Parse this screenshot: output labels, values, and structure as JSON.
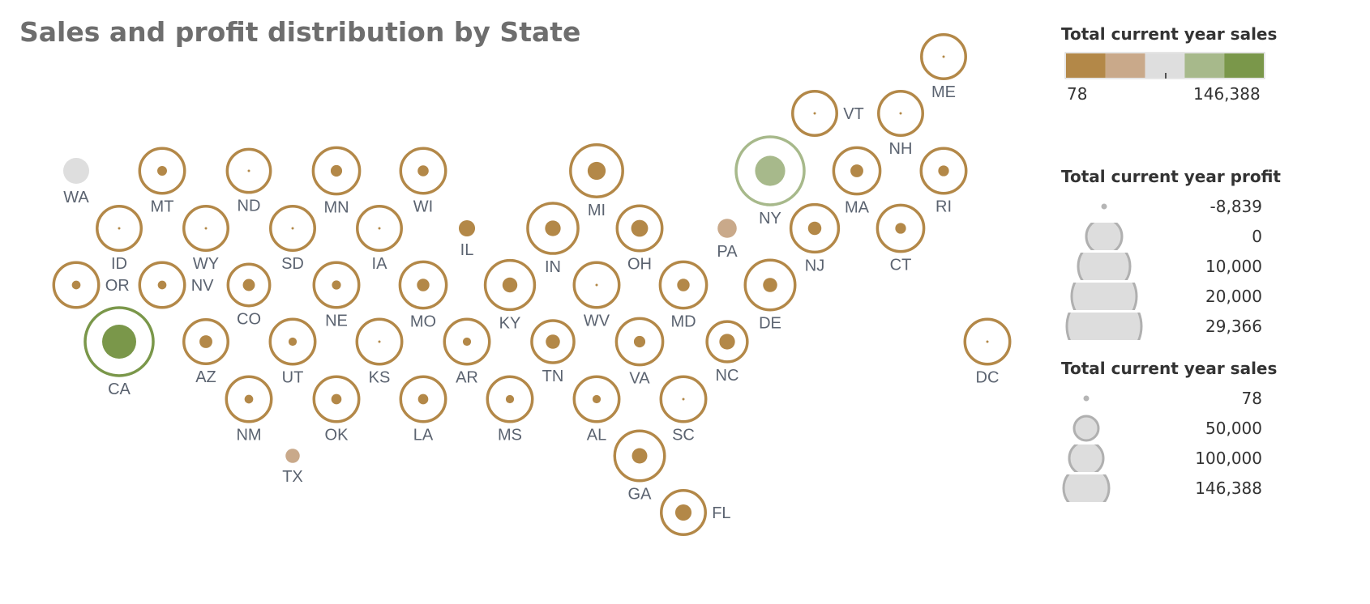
{
  "chart_data": {
    "type": "tile-map-bubble",
    "title": "Sales and profit distribution by State",
    "states": [
      {
        "abbr": "WA",
        "sales": 78,
        "profit": 0,
        "color": "#dedede"
      },
      {
        "abbr": "MT",
        "sales": 12000,
        "profit": 800,
        "color": "#b38848"
      },
      {
        "abbr": "ND",
        "sales": 8000,
        "profit": 100,
        "color": "#b38848"
      },
      {
        "abbr": "MN",
        "sales": 16000,
        "profit": 1500,
        "color": "#b38848"
      },
      {
        "abbr": "WI",
        "sales": 12000,
        "profit": 1300,
        "color": "#b38848"
      },
      {
        "abbr": "MI",
        "sales": 38000,
        "profit": 6000,
        "color": "#b38848"
      },
      {
        "abbr": "NY",
        "sales": 146388,
        "profit": 22000,
        "color": "#a7b98b"
      },
      {
        "abbr": "MA",
        "sales": 16000,
        "profit": 2200,
        "color": "#b38848"
      },
      {
        "abbr": "RI",
        "sales": 12000,
        "profit": 1200,
        "color": "#b38848"
      },
      {
        "abbr": "VT",
        "sales": 10000,
        "profit": 100,
        "color": "#b38848"
      },
      {
        "abbr": "NH",
        "sales": 10000,
        "profit": 100,
        "color": "#b38848"
      },
      {
        "abbr": "ME",
        "sales": 10000,
        "profit": 100,
        "color": "#b38848"
      },
      {
        "abbr": "ID",
        "sales": 10000,
        "profit": 100,
        "color": "#b38848"
      },
      {
        "abbr": "WY",
        "sales": 10000,
        "profit": 100,
        "color": "#b38848"
      },
      {
        "abbr": "SD",
        "sales": 10000,
        "profit": 100,
        "color": "#b38848"
      },
      {
        "abbr": "IA",
        "sales": 10000,
        "profit": 100,
        "color": "#b38848"
      },
      {
        "abbr": "IL",
        "sales": 78,
        "profit": 4500,
        "color": "#b38848"
      },
      {
        "abbr": "IN",
        "sales": 30000,
        "profit": 4000,
        "color": "#b38848"
      },
      {
        "abbr": "OH",
        "sales": 12000,
        "profit": 5000,
        "color": "#b38848"
      },
      {
        "abbr": "PA",
        "sales": 78,
        "profit": 7000,
        "color": "#c9a98a"
      },
      {
        "abbr": "NJ",
        "sales": 20000,
        "profit": 2500,
        "color": "#b38848"
      },
      {
        "abbr": "CT",
        "sales": 16000,
        "profit": 1200,
        "color": "#b38848"
      },
      {
        "abbr": "OR",
        "sales": 12000,
        "profit": 500,
        "color": "#b38848"
      },
      {
        "abbr": "NV",
        "sales": 12000,
        "profit": 500,
        "color": "#b38848"
      },
      {
        "abbr": "CO",
        "sales": 5000,
        "profit": 1800,
        "color": "#b38848"
      },
      {
        "abbr": "NE",
        "sales": 12000,
        "profit": 600,
        "color": "#b38848"
      },
      {
        "abbr": "MO",
        "sales": 16000,
        "profit": 2000,
        "color": "#b38848"
      },
      {
        "abbr": "KY",
        "sales": 26000,
        "profit": 3500,
        "color": "#b38848"
      },
      {
        "abbr": "WV",
        "sales": 12000,
        "profit": 100,
        "color": "#b38848"
      },
      {
        "abbr": "MD",
        "sales": 16000,
        "profit": 2000,
        "color": "#b38848"
      },
      {
        "abbr": "DE",
        "sales": 28000,
        "profit": 3000,
        "color": "#b38848"
      },
      {
        "abbr": "CA",
        "sales": 146388,
        "profit": 29366,
        "color": "#7a974a"
      },
      {
        "abbr": "AZ",
        "sales": 10000,
        "profit": 2200,
        "color": "#b38848"
      },
      {
        "abbr": "UT",
        "sales": 12000,
        "profit": 400,
        "color": "#b38848"
      },
      {
        "abbr": "KS",
        "sales": 12000,
        "profit": 150,
        "color": "#b38848"
      },
      {
        "abbr": "AR",
        "sales": 12000,
        "profit": 400,
        "color": "#b38848"
      },
      {
        "abbr": "TN",
        "sales": 6000,
        "profit": 3000,
        "color": "#b38848"
      },
      {
        "abbr": "VA",
        "sales": 16000,
        "profit": 1500,
        "color": "#b38848"
      },
      {
        "abbr": "NC",
        "sales": 3000,
        "profit": 4000,
        "color": "#b38848"
      },
      {
        "abbr": "DC",
        "sales": 12000,
        "profit": 100,
        "color": "#b38848"
      },
      {
        "abbr": "NM",
        "sales": 12000,
        "profit": 500,
        "color": "#b38848"
      },
      {
        "abbr": "OK",
        "sales": 12000,
        "profit": 1000,
        "color": "#b38848"
      },
      {
        "abbr": "LA",
        "sales": 12000,
        "profit": 1000,
        "color": "#b38848"
      },
      {
        "abbr": "MS",
        "sales": 12000,
        "profit": 400,
        "color": "#b38848"
      },
      {
        "abbr": "AL",
        "sales": 12000,
        "profit": 400,
        "color": "#b38848"
      },
      {
        "abbr": "SC",
        "sales": 12000,
        "profit": 100,
        "color": "#b38848"
      },
      {
        "abbr": "TX",
        "sales": 78,
        "profit": 3000,
        "color": "#c9a98a"
      },
      {
        "abbr": "GA",
        "sales": 28000,
        "profit": 3800,
        "color": "#b38848"
      },
      {
        "abbr": "FL",
        "sales": 10000,
        "profit": 4500,
        "color": "#b38848"
      }
    ],
    "legend": {
      "color_title": "Total current year sales",
      "color_min": "78",
      "color_max": "146,388",
      "color_steps": [
        "#b38848",
        "#c9a98a",
        "#dedede",
        "#a7b98b",
        "#7a974a"
      ],
      "profit_title": "Total current year profit",
      "profit_items": [
        "-8,839",
        "0",
        "10,000",
        "20,000",
        "29,366"
      ],
      "sales_title": "Total current year sales",
      "sales_items": [
        "78",
        "50,000",
        "100,000",
        "146,388"
      ]
    }
  }
}
